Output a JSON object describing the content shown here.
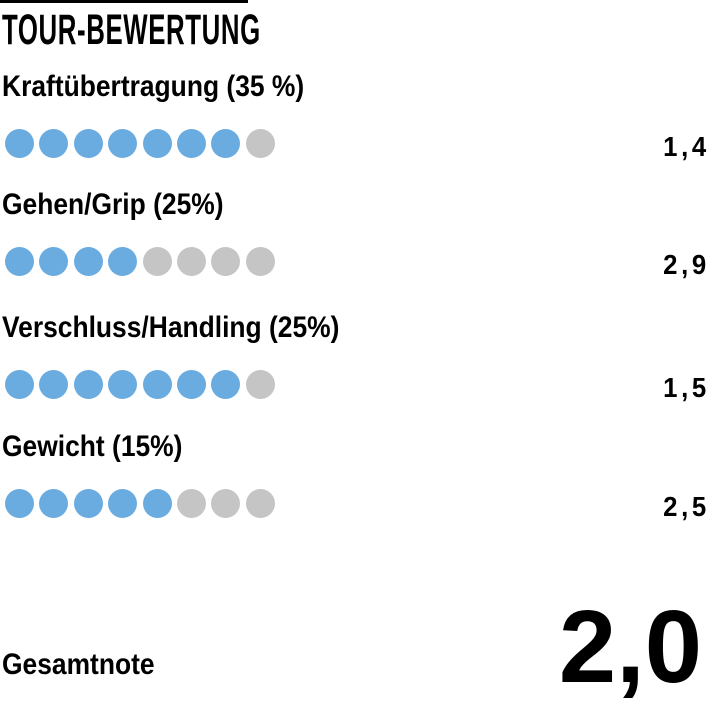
{
  "title": "TOUR-BEWERTUNG",
  "colors": {
    "filled_dot": "#6aabe0",
    "empty_dot": "#c5c5c5",
    "text": "#000000",
    "background": "#ffffff"
  },
  "chart_data": {
    "type": "rating-dots",
    "title": "TOUR-BEWERTUNG",
    "max_dots": 8,
    "dot_scale_note": "filled dots out of 8, lower grade is better",
    "categories": [
      {
        "label": "Kraftübertragung (35 %)",
        "weight_percent": 35,
        "score": "1,4",
        "score_value": 1.4,
        "filled_dots": 7
      },
      {
        "label": "Gehen/Grip (25%)",
        "weight_percent": 25,
        "score": "2,9",
        "score_value": 2.9,
        "filled_dots": 4
      },
      {
        "label": "Verschluss/Handling (25%)",
        "weight_percent": 25,
        "score": "1,5",
        "score_value": 1.5,
        "filled_dots": 7
      },
      {
        "label": "Gewicht (15%)",
        "weight_percent": 15,
        "score": "2,5",
        "score_value": 2.5,
        "filled_dots": 5
      }
    ],
    "total_label": "Gesamtnote",
    "total_score": "2,0",
    "total_score_value": 2.0
  }
}
